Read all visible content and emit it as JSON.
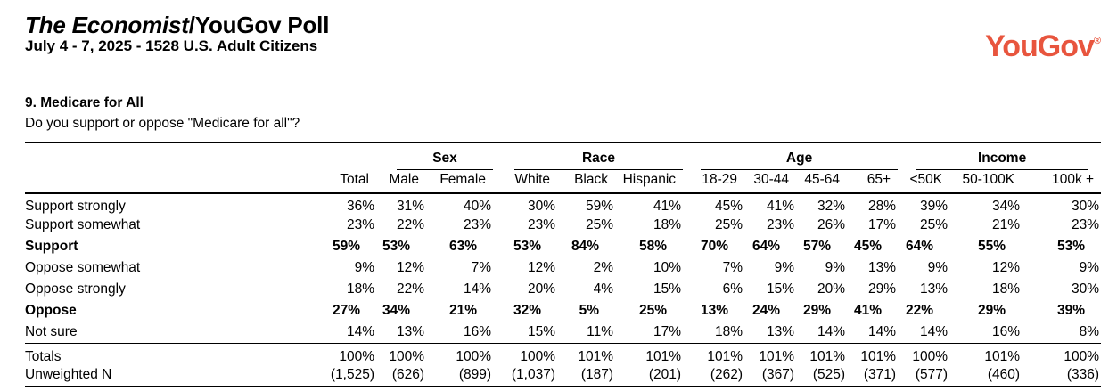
{
  "colors": {
    "logo": "#E8553E",
    "text": "#000000",
    "rules": "#000000"
  },
  "header": {
    "title_italic": "The Economist",
    "title_rest": "/YouGov Poll",
    "subtitle": "July 4 - 7, 2025 - 1528 U.S. Adult Citizens",
    "logo_text": "YouGov",
    "logo_mark": "®"
  },
  "question": {
    "title": "9. Medicare for All",
    "text": "Do you support or oppose \"Medicare for all\"?"
  },
  "table": {
    "groups": [
      {
        "label": "Sex",
        "span": 2
      },
      {
        "label": "Race",
        "span": 3
      },
      {
        "label": "Age",
        "span": 4
      },
      {
        "label": "Income",
        "span": 3
      }
    ],
    "columns": [
      "Total",
      "Male",
      "Female",
      "White",
      "Black",
      "Hispanic",
      "18-29",
      "30-44",
      "45-64",
      "65+",
      "<50K",
      "50-100K",
      "100k +"
    ],
    "rows": [
      {
        "label": "Support strongly",
        "bold": false,
        "values": [
          "36%",
          "31%",
          "40%",
          "30%",
          "59%",
          "41%",
          "45%",
          "41%",
          "32%",
          "28%",
          "39%",
          "34%",
          "30%"
        ]
      },
      {
        "label": "Support somewhat",
        "bold": false,
        "values": [
          "23%",
          "22%",
          "23%",
          "23%",
          "25%",
          "18%",
          "25%",
          "23%",
          "26%",
          "17%",
          "25%",
          "21%",
          "23%"
        ]
      },
      {
        "label": "Support",
        "bold": true,
        "values": [
          "59%",
          "53%",
          "63%",
          "53%",
          "84%",
          "58%",
          "70%",
          "64%",
          "57%",
          "45%",
          "64%",
          "55%",
          "53%"
        ]
      },
      {
        "label": "Oppose somewhat",
        "bold": false,
        "values": [
          "9%",
          "12%",
          "7%",
          "12%",
          "2%",
          "10%",
          "7%",
          "9%",
          "9%",
          "13%",
          "9%",
          "12%",
          "9%"
        ]
      },
      {
        "label": "Oppose strongly",
        "bold": false,
        "values": [
          "18%",
          "22%",
          "14%",
          "20%",
          "4%",
          "15%",
          "6%",
          "15%",
          "20%",
          "29%",
          "13%",
          "18%",
          "30%"
        ]
      },
      {
        "label": "Oppose",
        "bold": true,
        "values": [
          "27%",
          "34%",
          "21%",
          "32%",
          "5%",
          "25%",
          "13%",
          "24%",
          "29%",
          "41%",
          "22%",
          "29%",
          "39%"
        ]
      },
      {
        "label": "Not sure",
        "bold": false,
        "values": [
          "14%",
          "13%",
          "16%",
          "15%",
          "11%",
          "17%",
          "18%",
          "13%",
          "14%",
          "14%",
          "14%",
          "16%",
          "8%"
        ]
      }
    ],
    "footer_rows": [
      {
        "label": "Totals",
        "values": [
          "100%",
          "100%",
          "100%",
          "100%",
          "101%",
          "101%",
          "101%",
          "101%",
          "101%",
          "101%",
          "100%",
          "101%",
          "100%"
        ]
      },
      {
        "label": "Unweighted N",
        "values": [
          "(1,525)",
          "(626)",
          "(899)",
          "(1,037)",
          "(187)",
          "(201)",
          "(262)",
          "(367)",
          "(525)",
          "(371)",
          "(577)",
          "(460)",
          "(336)"
        ]
      }
    ]
  }
}
